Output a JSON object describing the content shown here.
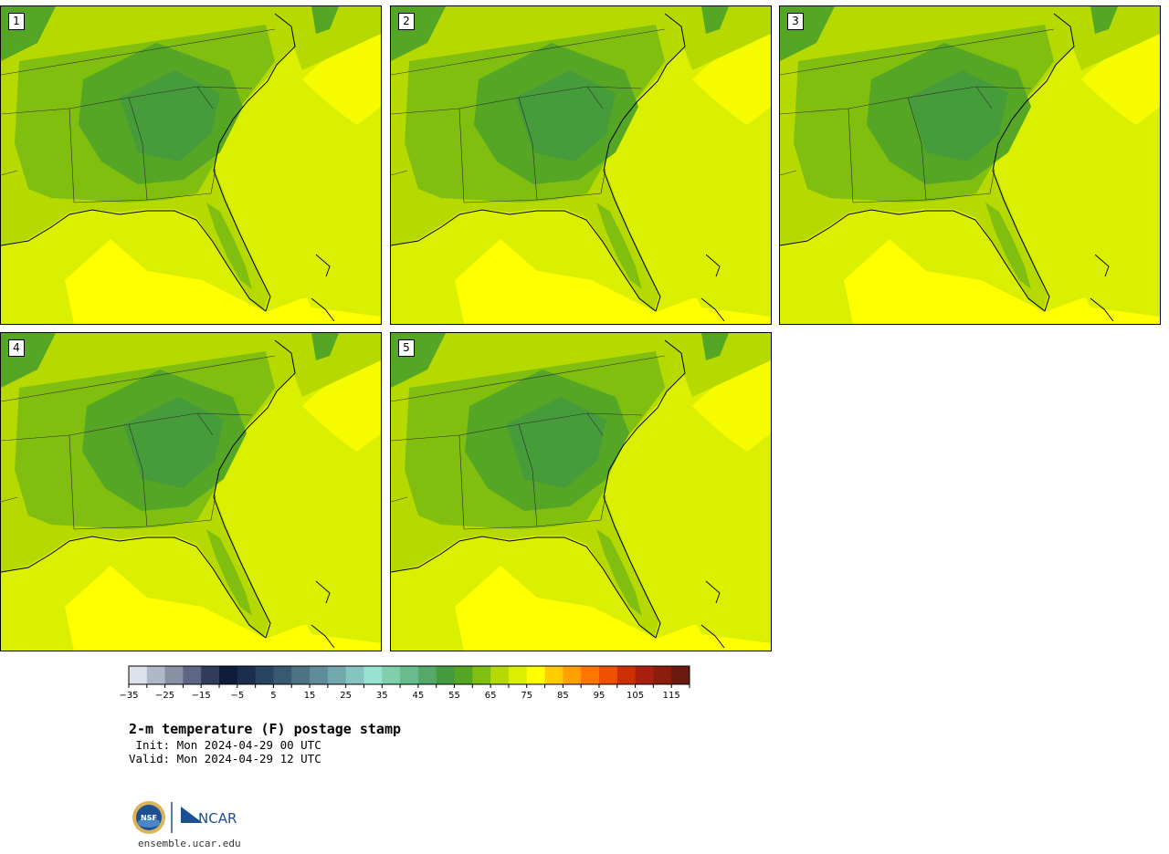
{
  "panels": [
    {
      "label": "1",
      "id": 1
    },
    {
      "label": "2",
      "id": 2
    },
    {
      "label": "3",
      "id": 3
    },
    {
      "label": "4",
      "id": 4
    },
    {
      "label": "5",
      "id": 5
    }
  ],
  "colorbar": {
    "colors": [
      "#dde3ea",
      "#b0b7c6",
      "#8891a4",
      "#5d6682",
      "#303c5a",
      "#0f1c3a",
      "#1a2e4e",
      "#274460",
      "#385a70",
      "#4e7384",
      "#5e8c98",
      "#72a8ac",
      "#86c4bf",
      "#98e2d2",
      "#80ceac",
      "#68bb8c",
      "#56a86a",
      "#449a3e",
      "#55a624",
      "#80be10",
      "#b6d900",
      "#dbf000",
      "#ffff00",
      "#ffcc00",
      "#ff9f00",
      "#ff7500",
      "#f05000",
      "#cc3000",
      "#aa2010",
      "#8c1c0c",
      "#6a1a10"
    ],
    "tick_labels": [
      "−35",
      "−25",
      "−15",
      "−5",
      "5",
      "15",
      "25",
      "35",
      "45",
      "55",
      "65",
      "75",
      "85",
      "95",
      "105",
      "115"
    ]
  },
  "title": "2-m temperature (F) postage stamp",
  "init_line": " Init: Mon 2024-04-29 00 UTC",
  "valid_line": "Valid: Mon 2024-04-29 12 UTC",
  "logo": {
    "nsf_text": "NSF",
    "ncar_text": "NCAR"
  },
  "site": "ensemble.ucar.edu"
}
